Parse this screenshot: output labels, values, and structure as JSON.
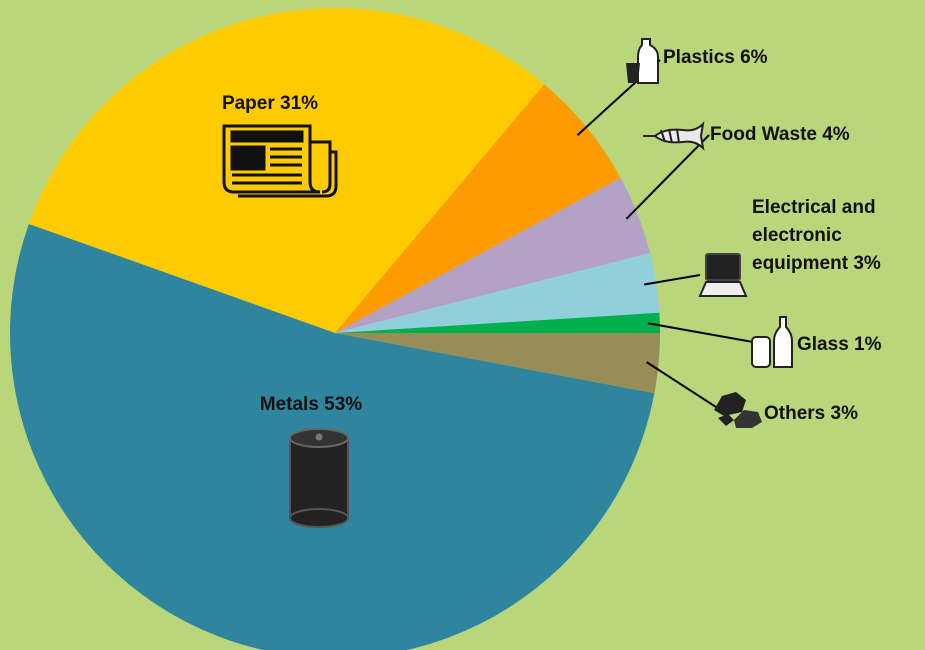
{
  "chart_data": {
    "type": "pie",
    "slices": [
      {
        "name": "Metals",
        "value": 53,
        "label": "Metals 53%",
        "color": "#30859e",
        "icon": "tin-can-icon"
      },
      {
        "name": "Paper",
        "value": 31,
        "label": "Paper 31%",
        "color": "#fecb00",
        "icon": "newspaper-icon"
      },
      {
        "name": "Plastics",
        "value": 6,
        "label": "Plastics 6%",
        "color": "#fe9b00",
        "icon": "plastic-bottle-icon"
      },
      {
        "name": "Food Waste",
        "value": 4,
        "label": "Food Waste 4%",
        "color": "#b3a2c6",
        "icon": "fish-bone-icon"
      },
      {
        "name": "Electrical and electronic equipment",
        "value": 3,
        "label": "Electrical and electronic equipment 3%",
        "color": "#91cfdd",
        "icon": "laptop-icon"
      },
      {
        "name": "Glass",
        "value": 1,
        "label": "Glass 1%",
        "color": "#00b04e",
        "icon": "glass-bottle-icon"
      },
      {
        "name": "Others",
        "value": 3,
        "label": "Others 3%",
        "color": "#978d58",
        "icon": "rubble-icon"
      }
    ],
    "background_color": "#b9d67b",
    "leader_line_color": "#000000"
  }
}
